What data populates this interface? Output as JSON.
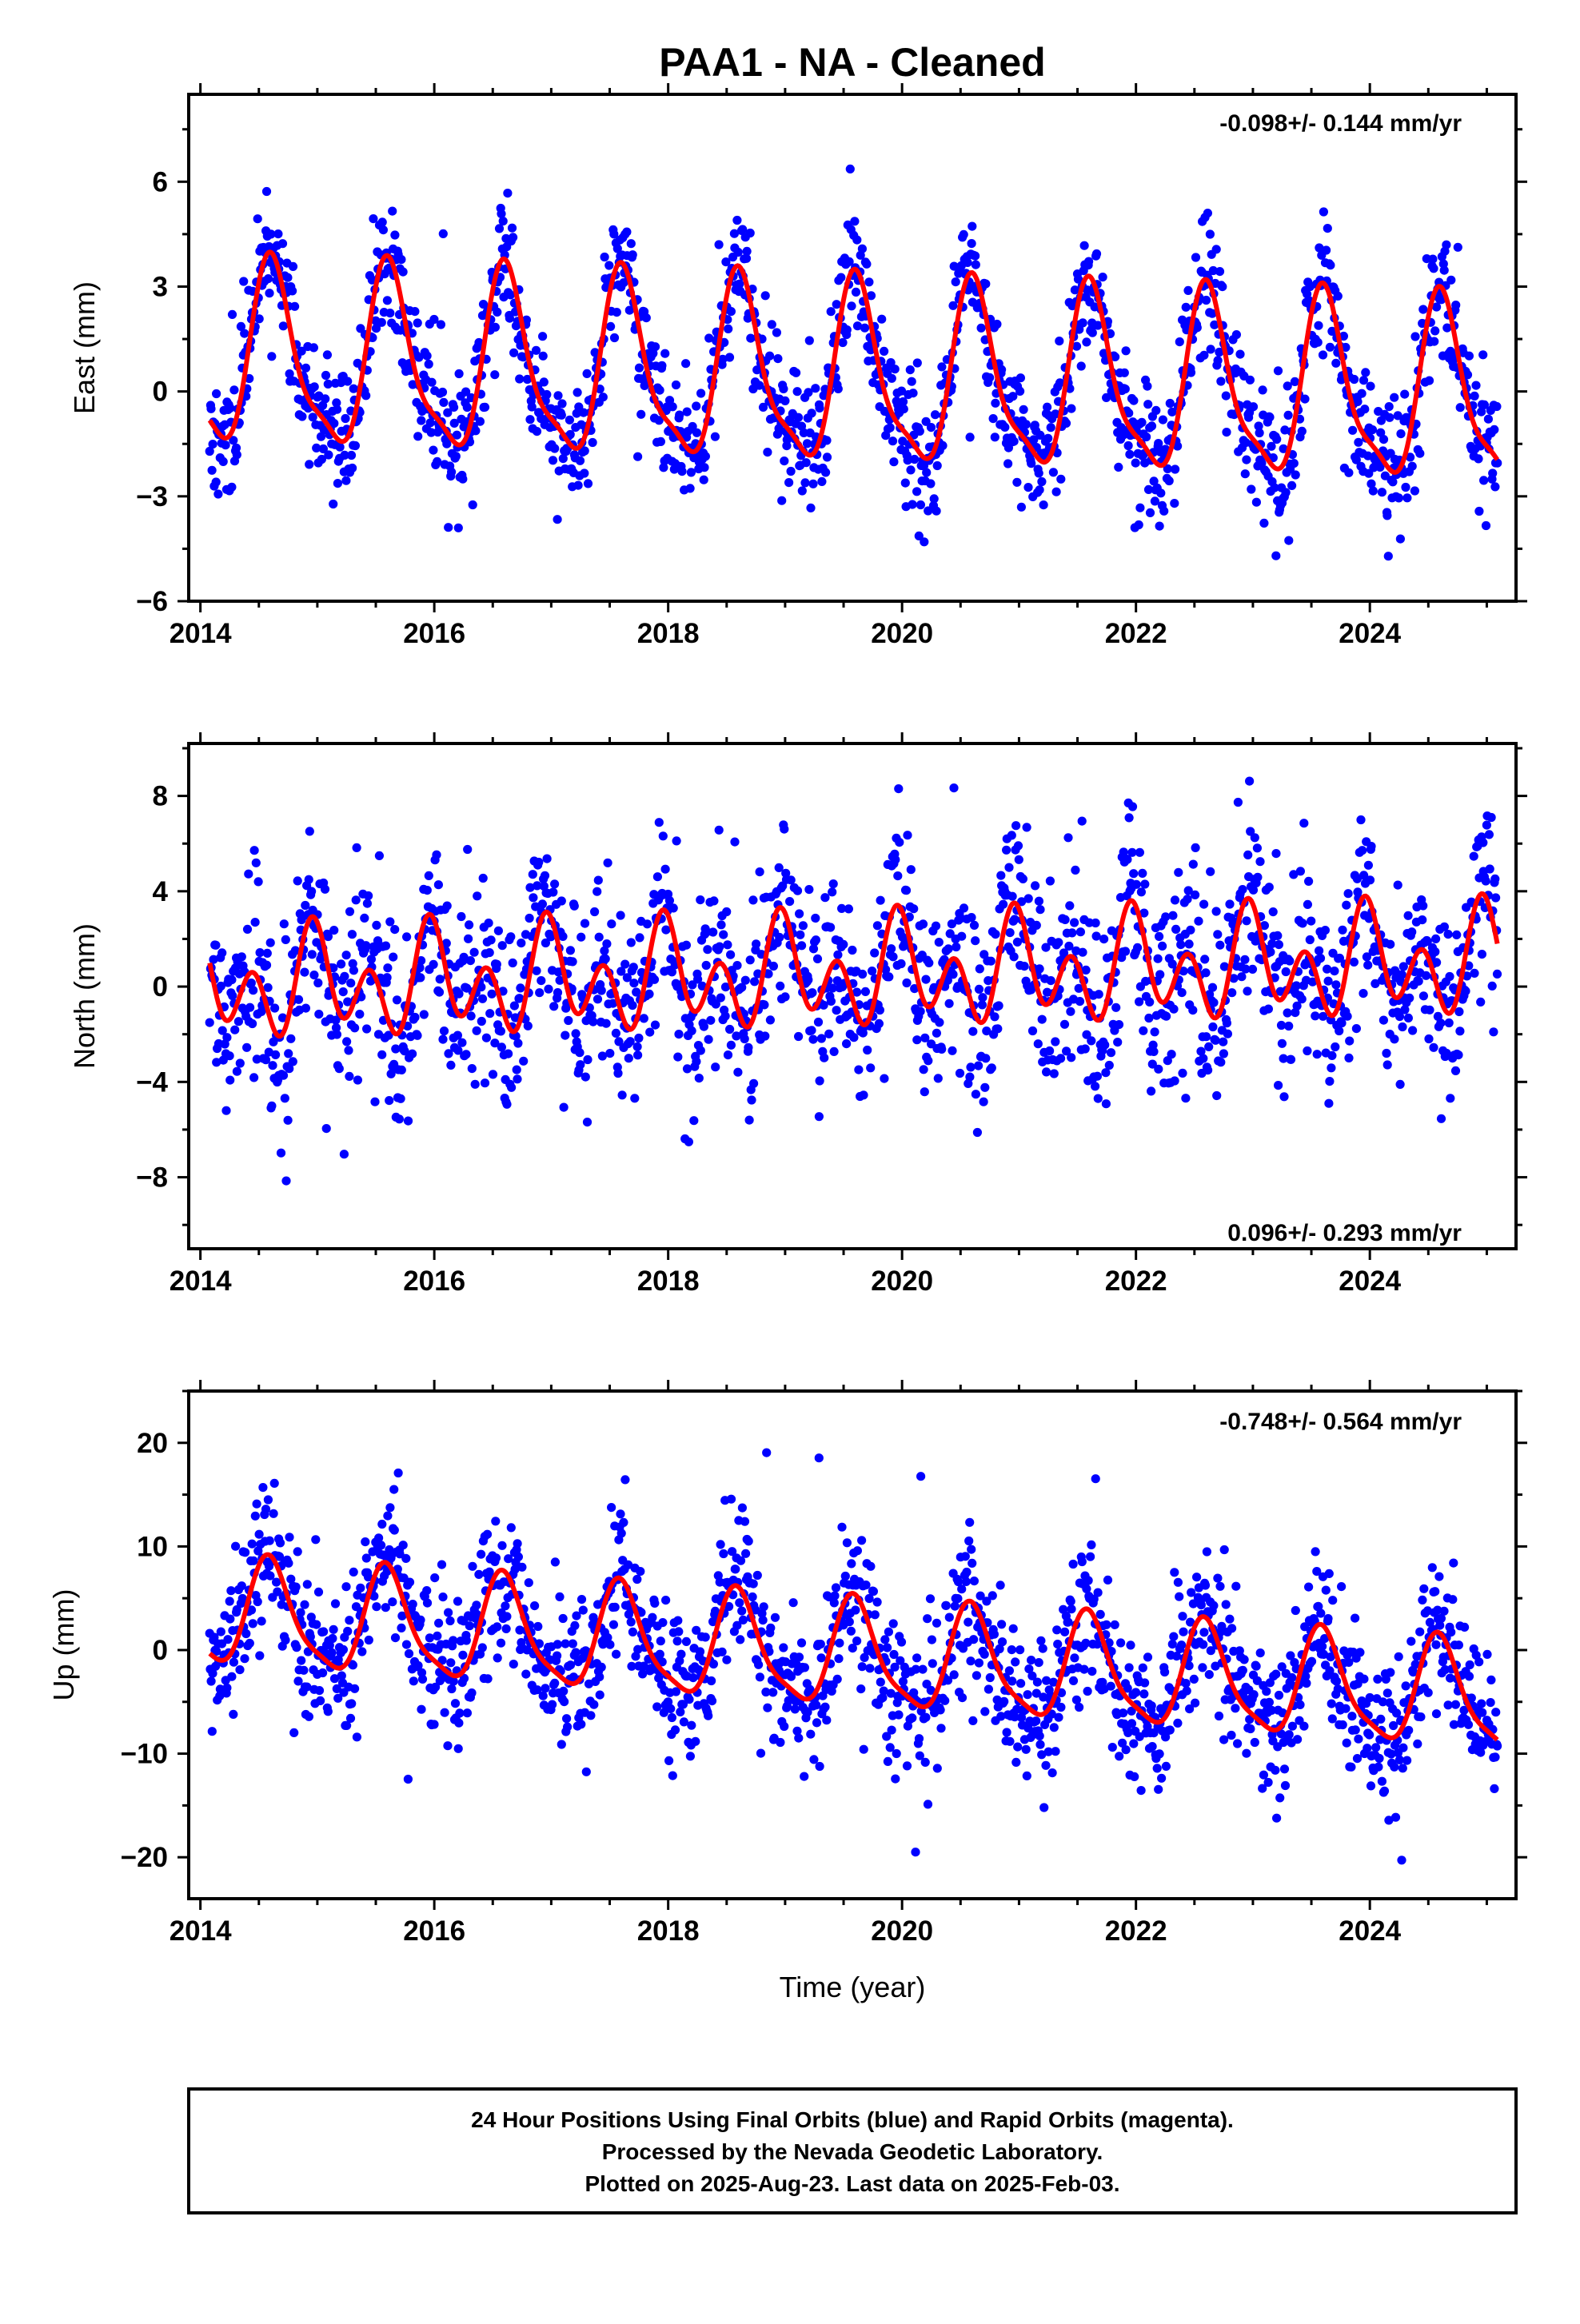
{
  "title": "PAA1  - NA - Cleaned",
  "xlabel": "Time (year)",
  "footer": {
    "lines": [
      "24 Hour Positions Using Final Orbits (blue) and Rapid Orbits (magenta).",
      "Processed by the Nevada Geodetic Laboratory.",
      "Plotted on 2025-Aug-23. Last data on 2025-Feb-03."
    ]
  },
  "colors": {
    "points": "#0000ff",
    "fit": "#ff0000",
    "frame": "#000000"
  },
  "chart_data": [
    {
      "type": "scatter",
      "ylabel": "East (mm)",
      "rate_label": "-0.098+/- 0.144 mm/yr",
      "xlim": [
        2013.9,
        2025.25
      ],
      "ylim": [
        -6,
        8.5
      ],
      "xticks": [
        2014,
        2016,
        2018,
        2020,
        2022,
        2024
      ],
      "xtick_labels": [
        "2014",
        "2016",
        "2018",
        "2020",
        "2022",
        "2024"
      ],
      "yticks": [
        -6,
        -3,
        0,
        3,
        6
      ],
      "ytick_labels": [
        "−6",
        "−3",
        "0",
        "3",
        "6"
      ],
      "series": [
        {
          "kind": "points",
          "x_start": 2014.08,
          "x_end": 2025.09,
          "annual_amp": 2.5,
          "annual_peak": 2014.62,
          "semi_amp": 0.7,
          "offset": 0.9,
          "trend": -0.098,
          "noise": 1.1,
          "seed": 11
        },
        {
          "kind": "fit",
          "x_start": 2014.08,
          "x_end": 2025.09,
          "annual_amp": 2.5,
          "annual_peak": 2014.62,
          "semi_amp": 0.7,
          "offset": 0.9,
          "trend": -0.098
        }
      ]
    },
    {
      "type": "scatter",
      "ylabel": "North (mm)",
      "rate_label": "0.096+/- 0.293 mm/yr",
      "xlim": [
        2013.9,
        2025.25
      ],
      "ylim": [
        -11,
        10.2
      ],
      "xticks": [
        2014,
        2016,
        2018,
        2020,
        2022,
        2024
      ],
      "xtick_labels": [
        "2014",
        "2016",
        "2018",
        "2020",
        "2022",
        "2024"
      ],
      "yticks": [
        -8,
        -4,
        0,
        4,
        8
      ],
      "ytick_labels": [
        "−8",
        "−4",
        "0",
        "4",
        "8"
      ],
      "series": [
        {
          "kind": "points",
          "x_start": 2014.08,
          "x_end": 2025.09,
          "annual_amp": 1.2,
          "annual_peak": 2015.0,
          "semi_amp": 1.7,
          "offset": 0.0,
          "trend": 0.096,
          "noise": 2.3,
          "seed": 23
        },
        {
          "kind": "fit",
          "x_start": 2014.08,
          "x_end": 2025.09,
          "annual_amp": 1.2,
          "annual_peak": 2015.0,
          "semi_amp": 1.7,
          "offset": 0.0,
          "trend": 0.096
        }
      ]
    },
    {
      "type": "scatter",
      "ylabel": "Up (mm)",
      "rate_label": "-0.748+/- 0.564 mm/yr",
      "xlim": [
        2013.9,
        2025.25
      ],
      "ylim": [
        -24,
        25
      ],
      "xticks": [
        2014,
        2016,
        2018,
        2020,
        2022,
        2024
      ],
      "xtick_labels": [
        "2014",
        "2016",
        "2018",
        "2020",
        "2022",
        "2024"
      ],
      "yticks": [
        -20,
        -10,
        0,
        10,
        20
      ],
      "ytick_labels": [
        "−20",
        "−10",
        "0",
        "10",
        "20"
      ],
      "series": [
        {
          "kind": "points",
          "x_start": 2014.08,
          "x_end": 2025.09,
          "annual_amp": 5.0,
          "annual_peak": 2014.6,
          "semi_amp": 1.2,
          "offset": 3.5,
          "trend": -0.748,
          "noise": 4.2,
          "seed": 37
        },
        {
          "kind": "fit",
          "x_start": 2014.08,
          "x_end": 2025.09,
          "annual_amp": 5.0,
          "annual_peak": 2014.6,
          "semi_amp": 1.2,
          "offset": 3.5,
          "trend": -0.748
        }
      ]
    }
  ]
}
